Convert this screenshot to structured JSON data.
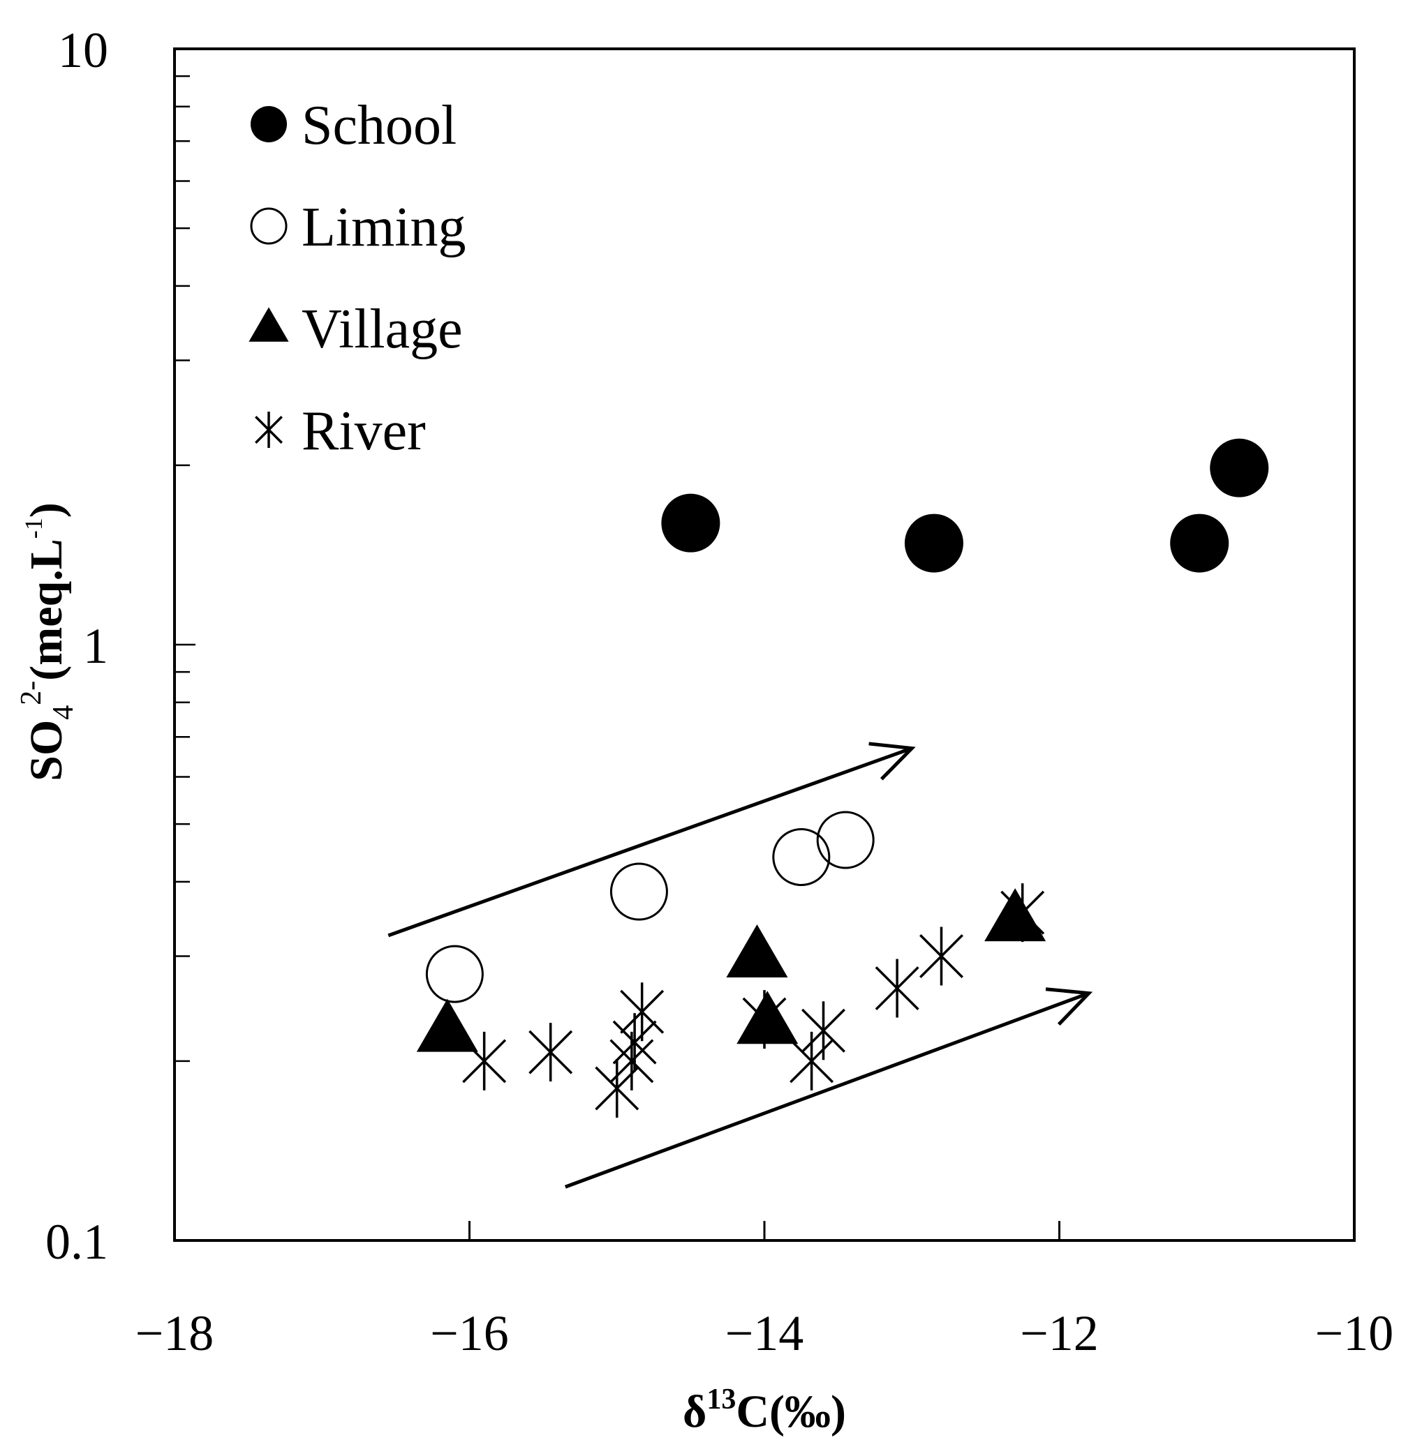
{
  "chart_data": {
    "type": "scatter",
    "title": "",
    "xlabel": {
      "main": "δ",
      "sup": "13",
      "rest": "C(‰)"
    },
    "ylabel": {
      "main": "SO",
      "sub": "4",
      "sup1": "2-",
      "rest": "(meq.L",
      "sup2": "-1",
      "close": ")"
    },
    "xlim": [
      -18,
      -10
    ],
    "ylim": [
      0.1,
      10
    ],
    "y_scale": "log",
    "x_ticks": [
      -18,
      -16,
      -14,
      -12,
      -10
    ],
    "x_tick_labels": [
      "−18",
      "−16",
      "−14",
      "−12",
      "−10"
    ],
    "y_ticks": [
      0.1,
      1,
      10
    ],
    "y_tick_labels": [
      "0.1",
      "1",
      "10"
    ],
    "legend_position": "top-left",
    "series": [
      {
        "name": "School",
        "marker": "filled-circle",
        "color": "#000000",
        "points": [
          [
            -14.5,
            1.6
          ],
          [
            -12.85,
            1.48
          ],
          [
            -11.05,
            1.48
          ],
          [
            -10.78,
            1.98
          ]
        ]
      },
      {
        "name": "Liming",
        "marker": "open-circle",
        "color": "#000000",
        "points": [
          [
            -16.1,
            0.28
          ],
          [
            -14.85,
            0.385
          ],
          [
            -13.75,
            0.44
          ],
          [
            -13.45,
            0.47
          ]
        ]
      },
      {
        "name": "Village",
        "marker": "filled-triangle",
        "color": "#000000",
        "points": [
          [
            -16.15,
            0.225
          ],
          [
            -14.05,
            0.3
          ],
          [
            -13.98,
            0.232
          ],
          [
            -12.3,
            0.345
          ]
        ]
      },
      {
        "name": "River",
        "marker": "asterisk",
        "color": "#000000",
        "points": [
          [
            -15.9,
            0.2
          ],
          [
            -15.45,
            0.207
          ],
          [
            -15.0,
            0.18
          ],
          [
            -14.9,
            0.2
          ],
          [
            -14.88,
            0.215
          ],
          [
            -14.83,
            0.242
          ],
          [
            -14.0,
            0.235
          ],
          [
            -13.68,
            0.2
          ],
          [
            -13.6,
            0.225
          ],
          [
            -13.1,
            0.265
          ],
          [
            -12.8,
            0.3
          ],
          [
            -12.25,
            0.355
          ]
        ]
      }
    ],
    "annotations": [
      {
        "type": "arrow",
        "from": [
          -16.55,
          0.325
        ],
        "to": [
          -13.0,
          0.67
        ]
      },
      {
        "type": "arrow",
        "from": [
          -15.35,
          0.123
        ],
        "to": [
          -11.8,
          0.26
        ]
      }
    ]
  }
}
